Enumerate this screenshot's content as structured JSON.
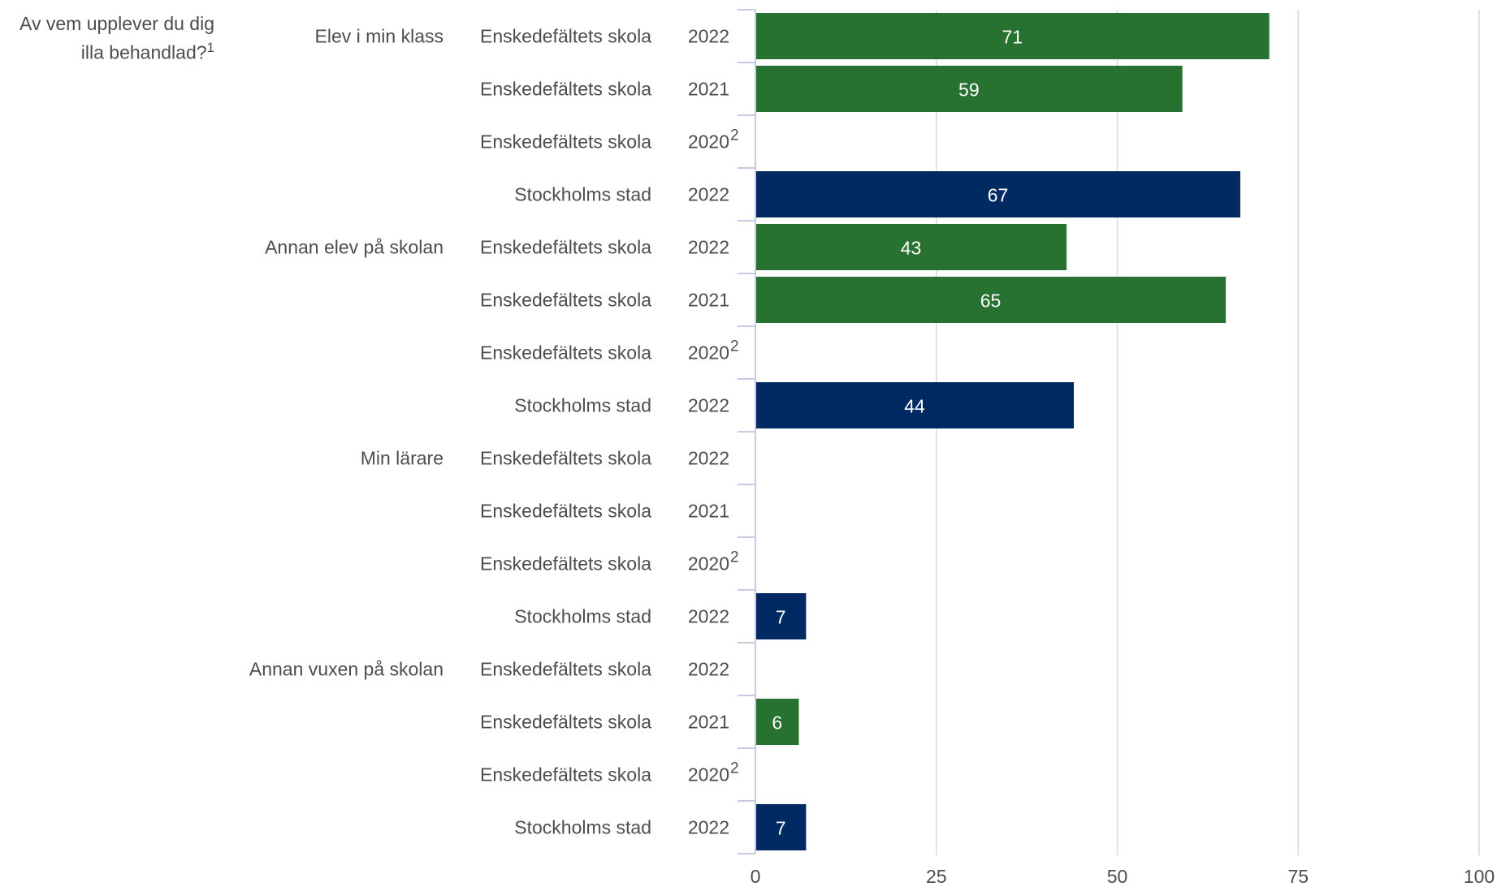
{
  "chart_data": {
    "type": "bar",
    "orientation": "horizontal",
    "question": "Av vem upplever du dig illa behandlad?",
    "question_footnote": "1",
    "groups": [
      "Elev i min klass",
      "Annan elev på skolan",
      "Min lärare",
      "Annan vuxen på skolan"
    ],
    "rows": [
      {
        "group": "Elev i min klass",
        "unit": "Enskedefältets skola",
        "year": "2022",
        "footnote": "",
        "value": 71
      },
      {
        "group": "Elev i min klass",
        "unit": "Enskedefältets skola",
        "year": "2021",
        "footnote": "",
        "value": 59
      },
      {
        "group": "Elev i min klass",
        "unit": "Enskedefältets skola",
        "year": "2020",
        "footnote": "2",
        "value": null
      },
      {
        "group": "Elev i min klass",
        "unit": "Stockholms stad",
        "year": "2022",
        "footnote": "",
        "value": 67
      },
      {
        "group": "Annan elev på skolan",
        "unit": "Enskedefältets skola",
        "year": "2022",
        "footnote": "",
        "value": 43
      },
      {
        "group": "Annan elev på skolan",
        "unit": "Enskedefältets skola",
        "year": "2021",
        "footnote": "",
        "value": 65
      },
      {
        "group": "Annan elev på skolan",
        "unit": "Enskedefältets skola",
        "year": "2020",
        "footnote": "2",
        "value": null
      },
      {
        "group": "Annan elev på skolan",
        "unit": "Stockholms stad",
        "year": "2022",
        "footnote": "",
        "value": 44
      },
      {
        "group": "Min lärare",
        "unit": "Enskedefältets skola",
        "year": "2022",
        "footnote": "",
        "value": null
      },
      {
        "group": "Min lärare",
        "unit": "Enskedefältets skola",
        "year": "2021",
        "footnote": "",
        "value": null
      },
      {
        "group": "Min lärare",
        "unit": "Enskedefältets skola",
        "year": "2020",
        "footnote": "2",
        "value": null
      },
      {
        "group": "Min lärare",
        "unit": "Stockholms stad",
        "year": "2022",
        "footnote": "",
        "value": 7
      },
      {
        "group": "Annan vuxen på skolan",
        "unit": "Enskedefältets skola",
        "year": "2022",
        "footnote": "",
        "value": null
      },
      {
        "group": "Annan vuxen på skolan",
        "unit": "Enskedefältets skola",
        "year": "2021",
        "footnote": "",
        "value": 6
      },
      {
        "group": "Annan vuxen på skolan",
        "unit": "Enskedefältets skola",
        "year": "2020",
        "footnote": "2",
        "value": null
      },
      {
        "group": "Annan vuxen på skolan",
        "unit": "Stockholms stad",
        "year": "2022",
        "footnote": "",
        "value": 7
      }
    ],
    "xlim": [
      0,
      100
    ],
    "xticks": [
      0,
      25,
      50,
      75,
      100
    ],
    "grid": true,
    "legend": "none",
    "colors": {
      "Enskedefältets skola": "#277230",
      "Stockholms stad": "#002a61",
      "label_text": "#ffffff",
      "axis_text": "#4d4d4d",
      "grid": "#d9d9d9",
      "axis_line": "#c5cbe0"
    }
  }
}
